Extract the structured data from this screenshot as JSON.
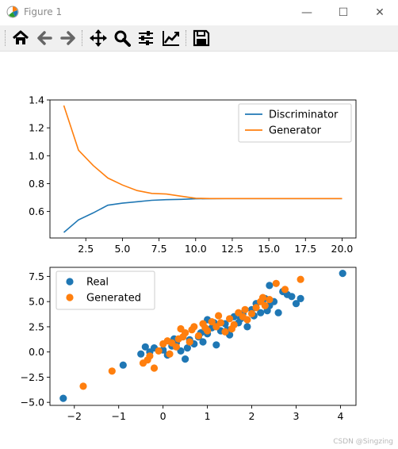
{
  "window": {
    "title": "Figure 1",
    "minimize": "—",
    "maximize": "☐",
    "close": "✕"
  },
  "toolbar": {
    "items": [
      "home-icon",
      "back-icon",
      "forward-icon",
      "pan-icon",
      "zoom-icon",
      "configure-subplots-icon",
      "edit-axis-icon",
      "save-icon"
    ]
  },
  "watermark": "CSDN @Singzing",
  "colors": {
    "blue": "#1f77b4",
    "orange": "#ff7f0e"
  },
  "chart_data": [
    {
      "type": "line",
      "x": [
        1,
        2,
        3,
        4,
        5,
        6,
        7,
        8,
        9,
        10,
        11,
        12,
        13,
        14,
        15,
        16,
        17,
        18,
        19,
        20
      ],
      "series": [
        {
          "name": "Discriminator",
          "color": "#1f77b4",
          "values": [
            0.45,
            0.54,
            0.59,
            0.645,
            0.66,
            0.67,
            0.68,
            0.685,
            0.687,
            0.691,
            0.692,
            0.693,
            0.693,
            0.693,
            0.693,
            0.693,
            0.693,
            0.693,
            0.693,
            0.693
          ]
        },
        {
          "name": "Generator",
          "color": "#ff7f0e",
          "values": [
            1.36,
            1.04,
            0.93,
            0.84,
            0.79,
            0.75,
            0.73,
            0.725,
            0.71,
            0.695,
            0.693,
            0.693,
            0.693,
            0.693,
            0.693,
            0.693,
            0.693,
            0.693,
            0.693,
            0.693
          ]
        }
      ],
      "xlim": [
        0.05,
        20.95
      ],
      "ylim": [
        0.41,
        1.4
      ],
      "xticks": [
        "2.5",
        "5.0",
        "7.5",
        "10.0",
        "12.5",
        "15.0",
        "17.5",
        "20.0"
      ],
      "xtick_values": [
        2.5,
        5,
        7.5,
        10,
        12.5,
        15,
        17.5,
        20
      ],
      "yticks": [
        "0.6",
        "0.8",
        "1.0",
        "1.2",
        "1.4"
      ],
      "ytick_values": [
        0.6,
        0.8,
        1.0,
        1.2,
        1.4
      ],
      "legend_position": "upper right"
    },
    {
      "type": "scatter",
      "series": [
        {
          "name": "Real",
          "color": "#1f77b4",
          "points": [
            [
              -2.25,
              -4.6
            ],
            [
              -0.9,
              -1.3
            ],
            [
              -0.5,
              -0.2
            ],
            [
              -0.4,
              0.5
            ],
            [
              -0.2,
              0.4
            ],
            [
              0.0,
              0.2
            ],
            [
              0.1,
              -0.3
            ],
            [
              0.2,
              0.6
            ],
            [
              0.3,
              0.9
            ],
            [
              0.4,
              0.1
            ],
            [
              0.5,
              -0.7
            ],
            [
              0.6,
              1.2
            ],
            [
              0.7,
              0.8
            ],
            [
              0.8,
              1.5
            ],
            [
              0.9,
              1.0
            ],
            [
              1.0,
              1.8
            ],
            [
              1.0,
              3.2
            ],
            [
              1.1,
              2.4
            ],
            [
              1.2,
              0.7
            ],
            [
              1.3,
              2.1
            ],
            [
              1.4,
              2.8
            ],
            [
              1.5,
              1.7
            ],
            [
              1.6,
              3.5
            ],
            [
              1.7,
              2.9
            ],
            [
              1.8,
              3.8
            ],
            [
              1.9,
              2.5
            ],
            [
              2.0,
              4.2
            ],
            [
              2.1,
              4.8
            ],
            [
              2.2,
              3.9
            ],
            [
              2.3,
              5.3
            ],
            [
              2.4,
              4.6
            ],
            [
              2.5,
              5.0
            ],
            [
              2.6,
              3.9
            ],
            [
              2.7,
              6.0
            ],
            [
              2.8,
              5.7
            ],
            [
              2.9,
              5.5
            ],
            [
              3.0,
              4.8
            ],
            [
              3.1,
              5.3
            ],
            [
              2.4,
              6.6
            ],
            [
              4.05,
              7.8
            ],
            [
              -0.3,
              0.0
            ],
            [
              0.25,
              1.3
            ],
            [
              0.55,
              0.4
            ],
            [
              0.85,
              1.9
            ],
            [
              1.15,
              2.9
            ],
            [
              1.45,
              2.2
            ],
            [
              1.75,
              3.3
            ],
            [
              2.05,
              3.6
            ],
            [
              2.35,
              4.1
            ]
          ]
        },
        {
          "name": "Generated",
          "color": "#ff7f0e",
          "points": [
            [
              -1.8,
              -3.4
            ],
            [
              -1.15,
              -1.9
            ],
            [
              -0.45,
              -1.1
            ],
            [
              -0.35,
              -0.8
            ],
            [
              -0.2,
              -1.6
            ],
            [
              -0.1,
              0.1
            ],
            [
              0.0,
              0.8
            ],
            [
              0.1,
              1.1
            ],
            [
              0.15,
              -0.2
            ],
            [
              0.3,
              0.5
            ],
            [
              0.35,
              1.3
            ],
            [
              0.4,
              2.3
            ],
            [
              0.5,
              1.9
            ],
            [
              0.6,
              1.0
            ],
            [
              0.7,
              2.5
            ],
            [
              0.8,
              1.6
            ],
            [
              0.9,
              2.8
            ],
            [
              1.0,
              2.1
            ],
            [
              1.1,
              3.0
            ],
            [
              1.2,
              2.5
            ],
            [
              1.3,
              2.9
            ],
            [
              1.4,
              2.0
            ],
            [
              1.5,
              3.3
            ],
            [
              1.6,
              2.7
            ],
            [
              1.7,
              3.9
            ],
            [
              1.8,
              3.5
            ],
            [
              1.9,
              3.2
            ],
            [
              2.0,
              3.8
            ],
            [
              2.1,
              4.4
            ],
            [
              2.2,
              5.0
            ],
            [
              2.3,
              4.6
            ],
            [
              2.4,
              5.2
            ],
            [
              2.55,
              6.8
            ],
            [
              2.75,
              6.2
            ],
            [
              3.1,
              7.2
            ],
            [
              -0.3,
              -0.4
            ],
            [
              0.2,
              0.9
            ],
            [
              0.45,
              1.5
            ],
            [
              0.65,
              2.2
            ],
            [
              0.95,
              2.4
            ],
            [
              1.25,
              3.6
            ],
            [
              1.55,
              2.3
            ],
            [
              1.85,
              4.2
            ],
            [
              2.25,
              5.4
            ]
          ]
        }
      ],
      "xlim": [
        -2.55,
        4.35
      ],
      "ylim": [
        -5.3,
        8.4
      ],
      "xticks": [
        "−2",
        "−1",
        "0",
        "1",
        "2",
        "3",
        "4"
      ],
      "xtick_values": [
        -2,
        -1,
        0,
        1,
        2,
        3,
        4
      ],
      "yticks": [
        "−5.0",
        "−2.5",
        "0.0",
        "2.5",
        "5.0",
        "7.5"
      ],
      "ytick_values": [
        -5,
        -2.5,
        0,
        2.5,
        5,
        7.5
      ],
      "legend_position": "upper left"
    }
  ]
}
